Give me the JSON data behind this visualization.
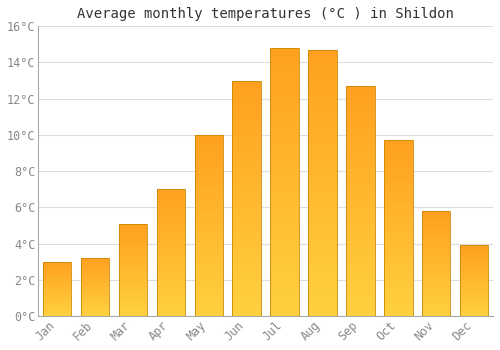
{
  "title": "Average monthly temperatures (°C ) in Shildon",
  "months": [
    "Jan",
    "Feb",
    "Mar",
    "Apr",
    "May",
    "Jun",
    "Jul",
    "Aug",
    "Sep",
    "Oct",
    "Nov",
    "Dec"
  ],
  "values": [
    3.0,
    3.2,
    5.1,
    7.0,
    10.0,
    13.0,
    14.8,
    14.7,
    12.7,
    9.7,
    5.8,
    3.9
  ],
  "bar_color_bottom": "#FFD040",
  "bar_color_top": "#FFA020",
  "bar_edge_color": "#CC8800",
  "background_color": "#FFFFFF",
  "grid_color": "#DDDDDD",
  "ylim": [
    0,
    16
  ],
  "yticks": [
    0,
    2,
    4,
    6,
    8,
    10,
    12,
    14,
    16
  ],
  "ytick_labels": [
    "0°C",
    "2°C",
    "4°C",
    "6°C",
    "8°C",
    "10°C",
    "12°C",
    "14°C",
    "16°C"
  ],
  "title_fontsize": 10,
  "tick_fontsize": 8.5,
  "title_color": "#333333",
  "tick_color": "#888888",
  "bar_width": 0.75
}
